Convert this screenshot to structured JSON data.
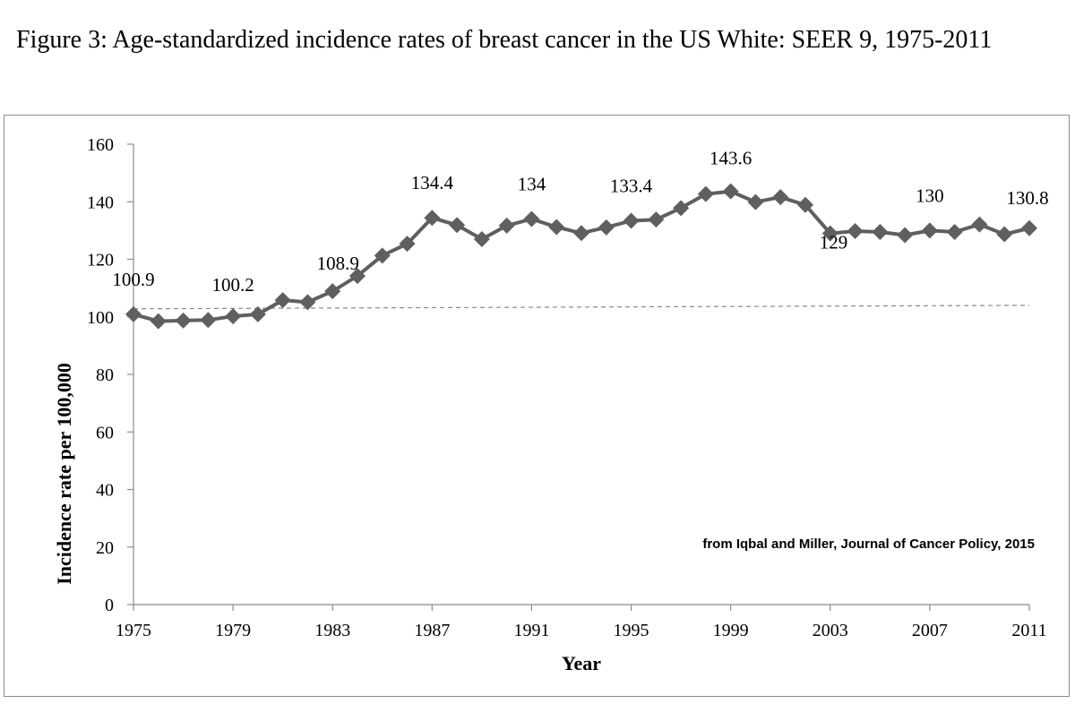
{
  "caption": "Figure 3: Age-standardized incidence rates of breast cancer in the US White: SEER 9, 1975-2011",
  "chart_data": {
    "type": "line",
    "title": "Figure 3: Age-standardized incidence rates of breast cancer in the US White: SEER 9, 1975-2011",
    "xlabel": "Year",
    "ylabel": "Incidence rate per 100,000",
    "ylim": [
      0,
      160
    ],
    "xlim": [
      1975,
      2011
    ],
    "y_ticks": [
      0,
      20,
      40,
      60,
      80,
      100,
      120,
      140,
      160
    ],
    "x_ticks": [
      1975,
      1979,
      1983,
      1987,
      1991,
      1995,
      1999,
      2003,
      2007,
      2011
    ],
    "grid": false,
    "series": [
      {
        "x": [
          1975,
          1976,
          1977,
          1978,
          1979,
          1980,
          1981,
          1982,
          1983,
          1984,
          1985,
          1986,
          1987,
          1988,
          1989,
          1990,
          1991,
          1992,
          1993,
          1994,
          1995,
          1996,
          1997,
          1998,
          1999,
          2000,
          2001,
          2002,
          2003,
          2004,
          2005,
          2006,
          2007,
          2008,
          2009,
          2010,
          2011
        ],
        "values": [
          100.9,
          98.5,
          98.7,
          98.9,
          100.2,
          100.9,
          105.8,
          105.1,
          108.9,
          114.2,
          121.3,
          125.4,
          134.4,
          131.9,
          127.0,
          131.7,
          134.0,
          131.2,
          129.1,
          131.1,
          133.4,
          133.8,
          137.8,
          142.7,
          143.6,
          139.9,
          141.6,
          138.9,
          129.0,
          129.8,
          129.5,
          128.4,
          130.0,
          129.5,
          132.1,
          128.7,
          130.8
        ],
        "color": "#5f5f5f"
      }
    ],
    "data_labels": [
      {
        "x": 1975,
        "text": "100.9"
      },
      {
        "x": 1979,
        "text": "100.2"
      },
      {
        "x": 1983,
        "text": "108.9"
      },
      {
        "x": 1987,
        "text": "134.4"
      },
      {
        "x": 1991,
        "text": "134"
      },
      {
        "x": 1995,
        "text": "133.4"
      },
      {
        "x": 1999,
        "text": "143.6"
      },
      {
        "x": 2003,
        "text": "129"
      },
      {
        "x": 2007,
        "text": "130"
      },
      {
        "x": 2011,
        "text": "130.8"
      }
    ],
    "reference_line": {
      "y_start": 102.8,
      "y_end": 104.0,
      "style": "dashed",
      "color": "#8a8a8a"
    },
    "annotations": [
      "from Iqbal and Miller, Journal of Cancer Policy, 2015"
    ]
  }
}
